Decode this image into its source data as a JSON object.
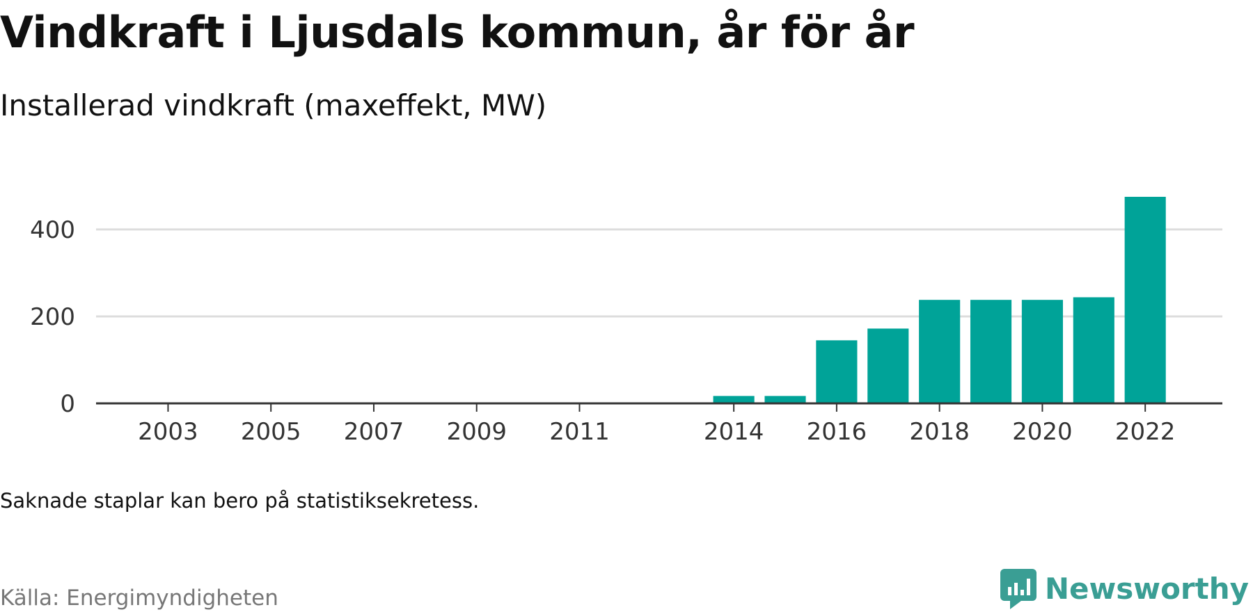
{
  "title": "Vindkraft i Ljusdals kommun, år för år",
  "subtitle": "Installerad vindkraft (maxeffekt, MW)",
  "note": "Saknade staplar kan bero på statistiksekretess.",
  "source": "Källa: Energimyndigheten",
  "brand": {
    "name": "Newsworthy",
    "color": "#3a9e94",
    "icon": "newsworthy-logo-icon"
  },
  "colors": {
    "bar": "#00a398",
    "grid": "#dddddd",
    "axis": "#333333",
    "tick_text": "#333333"
  },
  "chart_data": {
    "type": "bar",
    "title": "",
    "xlabel": "",
    "ylabel": "",
    "x": [
      2014,
      2015,
      2016,
      2017,
      2018,
      2019,
      2020,
      2021,
      2022
    ],
    "values": [
      17,
      17,
      145,
      172,
      238,
      238,
      238,
      244,
      475
    ],
    "xlim": [
      2001.6,
      2023.5
    ],
    "ylim": [
      0,
      475
    ],
    "yticks": [
      0,
      200,
      400
    ],
    "xticks": [
      2003,
      2005,
      2007,
      2009,
      2011,
      2014,
      2016,
      2018,
      2020,
      2022
    ],
    "grid": true,
    "legend": "none"
  }
}
